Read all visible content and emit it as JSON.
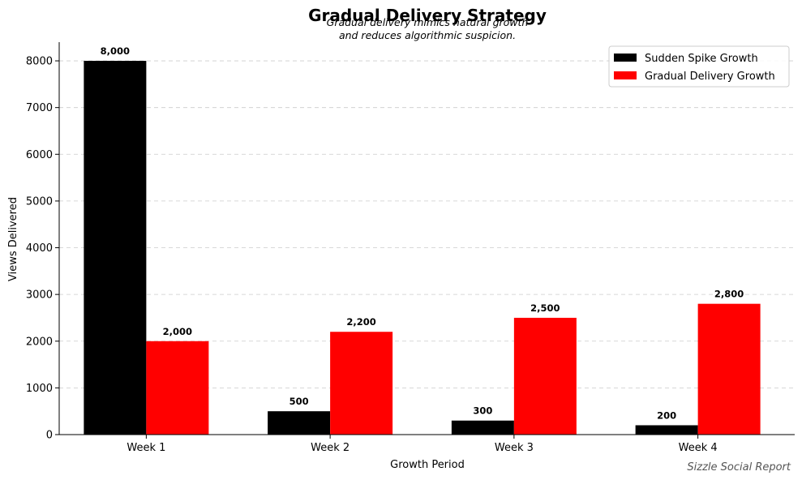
{
  "chart_data": {
    "type": "bar",
    "title": "Gradual Delivery Strategy",
    "subtitle_lines": [
      "Gradual delivery mimics natural growth",
      "and reduces algorithmic suspicion."
    ],
    "xlabel": "Growth Period",
    "ylabel": "Views Delivered",
    "categories": [
      "Week 1",
      "Week 2",
      "Week 3",
      "Week 4"
    ],
    "series": [
      {
        "name": "Sudden Spike Growth",
        "color": "#000000",
        "values": [
          8000,
          500,
          300,
          200
        ],
        "labels": [
          "8,000",
          "500",
          "300",
          "200"
        ]
      },
      {
        "name": "Gradual Delivery Growth",
        "color": "#ff0000",
        "values": [
          2000,
          2200,
          2500,
          2800
        ],
        "labels": [
          "2,000",
          "2,200",
          "2,500",
          "2,800"
        ]
      }
    ],
    "ylim": [
      0,
      8400
    ],
    "yticks": [
      0,
      1000,
      2000,
      3000,
      4000,
      5000,
      6000,
      7000,
      8000
    ],
    "grid": "horizontal dashed",
    "legend_position": "top-right"
  },
  "footer": {
    "credit": "Sizzle Social Report"
  }
}
